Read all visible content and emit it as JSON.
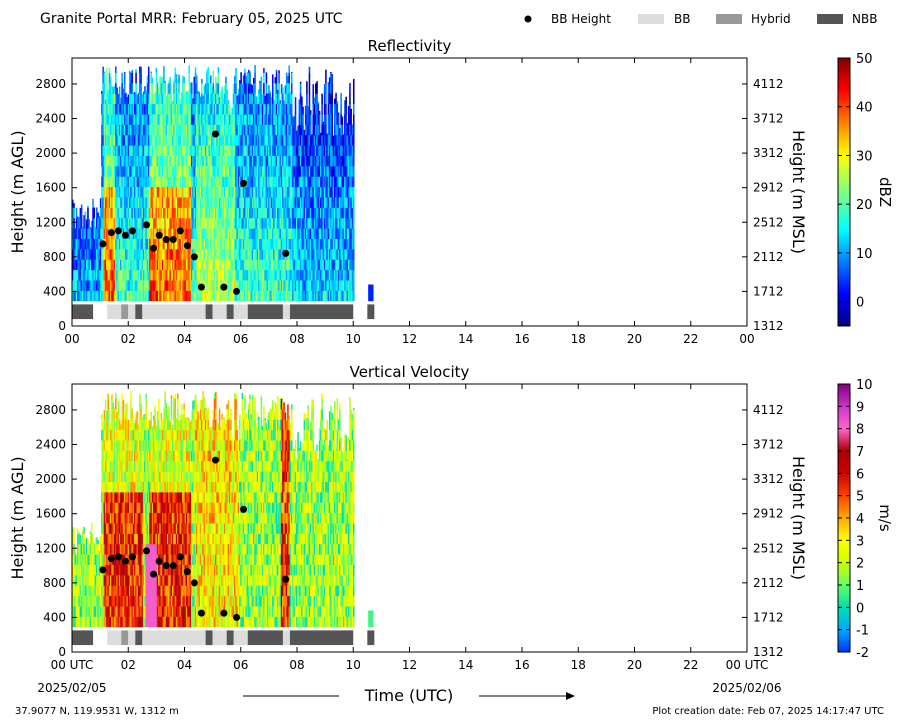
{
  "header": {
    "title": "Granite Portal MRR:  February 05, 2025 UTC",
    "legend": [
      {
        "label": "BB Height",
        "kind": "dot",
        "color": "#000000"
      },
      {
        "label": "BB",
        "kind": "swatch",
        "color": "#dcdcdc"
      },
      {
        "label": "Hybrid",
        "kind": "swatch",
        "color": "#999999"
      },
      {
        "label": "NBB",
        "kind": "swatch",
        "color": "#555555"
      }
    ]
  },
  "x_axis": {
    "label": "Time (UTC)",
    "ticks": [
      "00",
      "02",
      "04",
      "06",
      "08",
      "10",
      "12",
      "14",
      "16",
      "18",
      "20",
      "22",
      "00"
    ],
    "bottom_ticks": [
      "00 UTC",
      "02",
      "04",
      "06",
      "08",
      "10",
      "12",
      "14",
      "16",
      "18",
      "20",
      "22",
      "00 UTC"
    ],
    "start_date": "2025/02/05",
    "end_date": "2025/02/06"
  },
  "footer": {
    "location": "37.9077 N, 119.9531 W, 1312 m",
    "created": "Plot creation date: Feb 07, 2025 14:17:47 UTC"
  },
  "chart_data": [
    {
      "type": "heatmap",
      "title": "Reflectivity",
      "ylabel": "Height (m AGL)",
      "ylabel_right": "Height (m MSL)",
      "yticks": [
        0,
        400,
        800,
        1200,
        1600,
        2000,
        2400,
        2800
      ],
      "yticks_right": [
        1312,
        1712,
        2112,
        2512,
        2912,
        3312,
        3712,
        4112
      ],
      "ylim": [
        0,
        3100
      ],
      "xlim": [
        0,
        24
      ],
      "colorbar": {
        "label": "dBZ",
        "range": [
          -5,
          50
        ],
        "ticks": [
          0,
          10,
          20,
          30,
          40,
          50
        ],
        "scheme": "jet"
      },
      "data_extent_hours": [
        0,
        10.7
      ],
      "bb_height_points": {
        "x": [
          1.1,
          1.4,
          1.65,
          1.9,
          2.15,
          2.65,
          2.9,
          3.1,
          3.35,
          3.6,
          3.85,
          4.1,
          4.35,
          4.6,
          5.1,
          5.4,
          5.85,
          6.1,
          7.6
        ],
        "y": [
          950,
          1080,
          1100,
          1050,
          1100,
          1170,
          900,
          1050,
          1000,
          1000,
          1100,
          930,
          800,
          450,
          2220,
          450,
          400,
          1650,
          840
        ]
      },
      "bb_type_segments": [
        {
          "start": 0.0,
          "end": 0.75,
          "type": "NBB"
        },
        {
          "start": 1.25,
          "end": 1.75,
          "type": "BB"
        },
        {
          "start": 1.75,
          "end": 2.0,
          "type": "Hybrid"
        },
        {
          "start": 2.0,
          "end": 2.25,
          "type": "BB"
        },
        {
          "start": 2.25,
          "end": 2.5,
          "type": "NBB"
        },
        {
          "start": 2.5,
          "end": 4.75,
          "type": "BB"
        },
        {
          "start": 4.75,
          "end": 5.0,
          "type": "NBB"
        },
        {
          "start": 5.0,
          "end": 5.5,
          "type": "BB"
        },
        {
          "start": 5.5,
          "end": 5.75,
          "type": "NBB"
        },
        {
          "start": 5.75,
          "end": 6.25,
          "type": "BB"
        },
        {
          "start": 6.25,
          "end": 7.5,
          "type": "NBB"
        },
        {
          "start": 7.5,
          "end": 7.75,
          "type": "BB"
        },
        {
          "start": 7.75,
          "end": 10.0,
          "type": "NBB"
        },
        {
          "start": 10.5,
          "end": 10.75,
          "type": "NBB"
        }
      ]
    },
    {
      "type": "heatmap",
      "title": "Vertical Velocity",
      "ylabel": "Height (m AGL)",
      "ylabel_right": "Height (m MSL)",
      "yticks": [
        0,
        400,
        800,
        1200,
        1600,
        2000,
        2400,
        2800
      ],
      "yticks_right": [
        1312,
        1712,
        2112,
        2512,
        2912,
        3312,
        3712,
        4112
      ],
      "ylim": [
        0,
        3100
      ],
      "xlim": [
        0,
        24
      ],
      "colorbar": {
        "label": "m/s",
        "range": [
          -2,
          10
        ],
        "ticks": [
          -2,
          -1,
          0,
          1,
          2,
          3,
          4,
          5,
          6,
          7,
          8,
          9,
          10
        ],
        "scheme": "velocity"
      },
      "data_extent_hours": [
        0,
        10.7
      ],
      "bb_height_points": {
        "x": [
          1.1,
          1.4,
          1.65,
          1.9,
          2.15,
          2.65,
          2.9,
          3.1,
          3.35,
          3.6,
          3.85,
          4.1,
          4.35,
          4.6,
          5.1,
          5.4,
          5.85,
          6.1,
          7.6
        ],
        "y": [
          950,
          1080,
          1100,
          1050,
          1100,
          1170,
          900,
          1050,
          1000,
          1000,
          1100,
          930,
          800,
          450,
          2220,
          450,
          400,
          1650,
          840
        ]
      },
      "bb_type_segments": [
        {
          "start": 0.0,
          "end": 0.75,
          "type": "NBB"
        },
        {
          "start": 1.25,
          "end": 1.75,
          "type": "BB"
        },
        {
          "start": 1.75,
          "end": 2.0,
          "type": "Hybrid"
        },
        {
          "start": 2.0,
          "end": 2.25,
          "type": "BB"
        },
        {
          "start": 2.25,
          "end": 2.5,
          "type": "NBB"
        },
        {
          "start": 2.5,
          "end": 4.75,
          "type": "BB"
        },
        {
          "start": 4.75,
          "end": 5.0,
          "type": "NBB"
        },
        {
          "start": 5.0,
          "end": 5.5,
          "type": "BB"
        },
        {
          "start": 5.5,
          "end": 5.75,
          "type": "NBB"
        },
        {
          "start": 5.75,
          "end": 6.25,
          "type": "BB"
        },
        {
          "start": 6.25,
          "end": 7.5,
          "type": "NBB"
        },
        {
          "start": 7.5,
          "end": 7.75,
          "type": "BB"
        },
        {
          "start": 7.75,
          "end": 10.0,
          "type": "NBB"
        },
        {
          "start": 10.5,
          "end": 10.75,
          "type": "NBB"
        }
      ]
    }
  ]
}
